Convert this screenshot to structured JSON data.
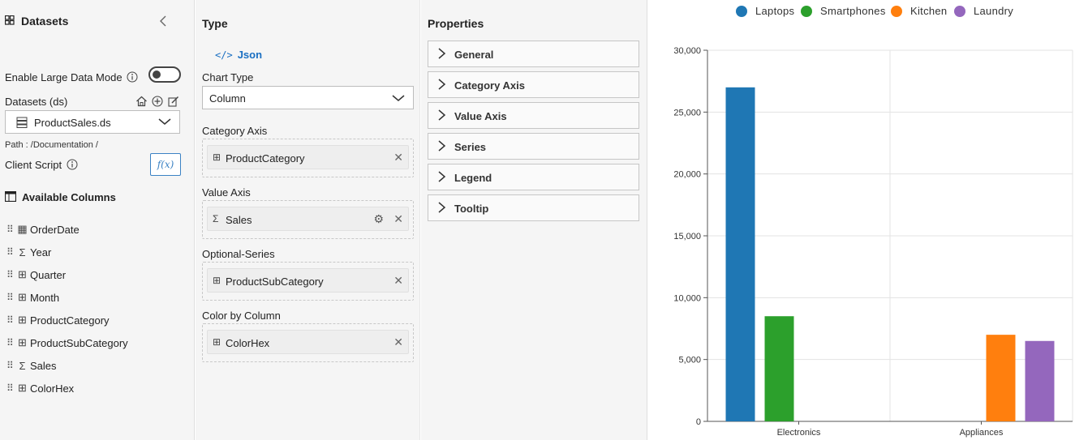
{
  "datasets_panel": {
    "title": "Datasets",
    "large_data_mode_label": "Enable Large Data Mode",
    "datasets_label": "Datasets (ds)",
    "selected_dataset": "ProductSales.ds",
    "path": "Path : /Documentation /",
    "client_script_label": "Client Script",
    "fx_label": "f(x)",
    "available_columns_title": "Available Columns",
    "columns": [
      {
        "name": "OrderDate",
        "icon": "calendar-icon"
      },
      {
        "name": "Year",
        "icon": "sigma-icon"
      },
      {
        "name": "Quarter",
        "icon": "table-column-icon"
      },
      {
        "name": "Month",
        "icon": "table-column-icon"
      },
      {
        "name": "ProductCategory",
        "icon": "table-column-icon"
      },
      {
        "name": "ProductSubCategory",
        "icon": "table-column-icon"
      },
      {
        "name": "Sales",
        "icon": "sigma-icon"
      },
      {
        "name": "ColorHex",
        "icon": "table-column-icon"
      }
    ]
  },
  "config_panel": {
    "type_title": "Type",
    "json_link": "Json",
    "chart_type_label": "Chart Type",
    "chart_type_value": "Column",
    "category_axis_label": "Category Axis",
    "category_axis_value": "ProductCategory",
    "value_axis_label": "Value Axis",
    "value_axis_value": "Sales",
    "optional_series_label": "Optional-Series",
    "optional_series_value": "ProductSubCategory",
    "color_by_label": "Color by Column",
    "color_by_value": "ColorHex"
  },
  "properties_panel": {
    "title": "Properties",
    "sections": [
      "General",
      "Category Axis",
      "Value Axis",
      "Series",
      "Legend",
      "Tooltip"
    ]
  },
  "colors": {
    "link": "#1a6fc2",
    "laptops": "#1f77b4",
    "smartphones": "#2ca02c",
    "kitchen": "#ff7f0e",
    "laundry": "#9467bd"
  },
  "chart_data": {
    "type": "bar",
    "categories": [
      "Electronics",
      "Appliances"
    ],
    "series": [
      {
        "name": "Laptops",
        "color": "#1f77b4",
        "values": [
          27000,
          null
        ]
      },
      {
        "name": "Smartphones",
        "color": "#2ca02c",
        "values": [
          8500,
          null
        ]
      },
      {
        "name": "Kitchen",
        "color": "#ff7f0e",
        "values": [
          null,
          7000
        ]
      },
      {
        "name": "Laundry",
        "color": "#9467bd",
        "values": [
          null,
          6500
        ]
      }
    ],
    "ylim": [
      0,
      30000
    ],
    "yticks": [
      0,
      5000,
      10000,
      15000,
      20000,
      25000,
      30000
    ],
    "ytick_labels": [
      "0",
      "5,000",
      "10,000",
      "15,000",
      "20,000",
      "25,000",
      "30,000"
    ],
    "grid": true,
    "legend_position": "top"
  }
}
